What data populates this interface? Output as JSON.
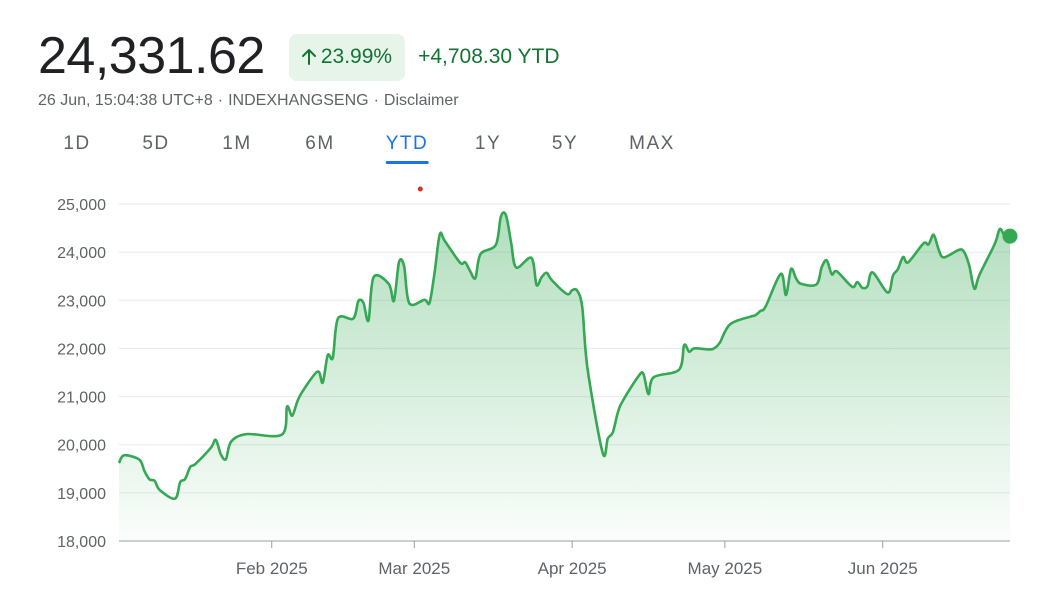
{
  "quote": {
    "price": "24,331.62",
    "change_percent": "23.99%",
    "change_abs": "+4,708.30 YTD",
    "date_time": "26 Jun, 15:04:38 UTC+8",
    "index": "INDEXHANGSENG",
    "disclaimer": "Disclaimer",
    "separator": "·"
  },
  "tabs": [
    {
      "label": "1D",
      "active": false
    },
    {
      "label": "5D",
      "active": false
    },
    {
      "label": "1M",
      "active": false
    },
    {
      "label": "6M",
      "active": false
    },
    {
      "label": "YTD",
      "active": true
    },
    {
      "label": "1Y",
      "active": false
    },
    {
      "label": "5Y",
      "active": false
    },
    {
      "label": "MAX",
      "active": false
    }
  ],
  "colors": {
    "line": "#34a853",
    "positive_text": "#137333",
    "badge_bg": "#e6f4ea",
    "grid": "#e8eaed",
    "axis": "#5f6368",
    "tab_active": "#1a73e8",
    "marker": "#d93025"
  },
  "chart_data": {
    "type": "area",
    "xlabel": "",
    "ylabel": "",
    "ylim": [
      18000,
      25000
    ],
    "y_ticks": [
      18000,
      19000,
      20000,
      21000,
      22000,
      23000,
      24000,
      25000
    ],
    "y_tick_labels": [
      "18,000",
      "19,000",
      "20,000",
      "21,000",
      "22,000",
      "23,000",
      "24,000",
      "25,000"
    ],
    "x_range": [
      "2025-01-02",
      "2025-06-26"
    ],
    "x_ticks": [
      {
        "date": "2025-02-01",
        "label": "Feb 2025"
      },
      {
        "date": "2025-03-01",
        "label": "Mar 2025"
      },
      {
        "date": "2025-04-01",
        "label": "Apr 2025"
      },
      {
        "date": "2025-05-01",
        "label": "May 2025"
      },
      {
        "date": "2025-06-01",
        "label": "Jun 2025"
      }
    ],
    "grid": true,
    "event_marker_date": "2025-03-01",
    "last_point": {
      "date": "2025-06-26",
      "value": 24331.62
    },
    "series": [
      {
        "x": [
          "2025-01-02",
          "2025-01-03",
          "2025-01-06",
          "2025-01-07",
          "2025-01-08",
          "2025-01-09",
          "2025-01-10",
          "2025-01-13",
          "2025-01-14",
          "2025-01-15",
          "2025-01-16",
          "2025-01-17",
          "2025-01-20",
          "2025-01-21",
          "2025-01-22",
          "2025-01-23",
          "2025-01-24",
          "2025-01-27",
          "2025-02-03",
          "2025-02-04",
          "2025-02-05",
          "2025-02-06",
          "2025-02-07",
          "2025-02-10",
          "2025-02-11",
          "2025-02-12",
          "2025-02-13",
          "2025-02-14",
          "2025-02-17",
          "2025-02-18",
          "2025-02-19",
          "2025-02-20",
          "2025-02-21",
          "2025-02-24",
          "2025-02-25",
          "2025-02-26",
          "2025-02-27",
          "2025-02-28",
          "2025-03-03",
          "2025-03-04",
          "2025-03-05",
          "2025-03-06",
          "2025-03-07",
          "2025-03-10",
          "2025-03-11",
          "2025-03-12",
          "2025-03-13",
          "2025-03-14",
          "2025-03-17",
          "2025-03-18",
          "2025-03-19",
          "2025-03-20",
          "2025-03-21",
          "2025-03-24",
          "2025-03-25",
          "2025-03-26",
          "2025-03-27",
          "2025-03-28",
          "2025-03-31",
          "2025-04-01",
          "2025-04-02",
          "2025-04-03",
          "2025-04-04",
          "2025-04-07",
          "2025-04-08",
          "2025-04-09",
          "2025-04-10",
          "2025-04-11",
          "2025-04-14",
          "2025-04-15",
          "2025-04-16",
          "2025-04-17",
          "2025-04-22",
          "2025-04-23",
          "2025-04-24",
          "2025-04-25",
          "2025-04-28",
          "2025-04-29",
          "2025-04-30",
          "2025-05-02",
          "2025-05-06",
          "2025-05-07",
          "2025-05-08",
          "2025-05-09",
          "2025-05-12",
          "2025-05-13",
          "2025-05-14",
          "2025-05-15",
          "2025-05-16",
          "2025-05-19",
          "2025-05-20",
          "2025-05-21",
          "2025-05-22",
          "2025-05-23",
          "2025-05-26",
          "2025-05-27",
          "2025-05-28",
          "2025-05-29",
          "2025-05-30",
          "2025-06-02",
          "2025-06-03",
          "2025-06-04",
          "2025-06-05",
          "2025-06-06",
          "2025-06-09",
          "2025-06-10",
          "2025-06-11",
          "2025-06-12",
          "2025-06-13",
          "2025-06-16",
          "2025-06-17",
          "2025-06-18",
          "2025-06-19",
          "2025-06-20",
          "2025-06-23",
          "2025-06-24",
          "2025-06-25",
          "2025-06-26"
        ],
        "values": [
          19620,
          19780,
          19690,
          19450,
          19280,
          19250,
          19060,
          18880,
          19220,
          19290,
          19540,
          19600,
          19930,
          20100,
          19800,
          19700,
          20060,
          20220,
          20210,
          20790,
          20600,
          20890,
          21100,
          21520,
          21290,
          21860,
          21810,
          22620,
          22620,
          22980,
          22950,
          22580,
          23480,
          23340,
          22990,
          23790,
          23710,
          22940,
          23010,
          22950,
          23590,
          24370,
          24230,
          23780,
          23790,
          23600,
          23460,
          23960,
          24150,
          24740,
          24770,
          24210,
          23680,
          23880,
          23320,
          23480,
          23570,
          23420,
          23130,
          23210,
          23200,
          22850,
          21600,
          19830,
          20130,
          20260,
          20680,
          20920,
          21420,
          21470,
          21050,
          21400,
          21560,
          22070,
          21930,
          22000,
          21980,
          22010,
          22120,
          22500,
          22660,
          22690,
          22780,
          22870,
          23550,
          23110,
          23650,
          23450,
          23340,
          23330,
          23680,
          23830,
          23540,
          23600,
          23280,
          23380,
          23260,
          23290,
          23580,
          23160,
          23510,
          23650,
          23900,
          23790,
          24180,
          24160,
          24360,
          24050,
          23890,
          24050,
          24000,
          23720,
          23240,
          23530,
          24170,
          24480,
          24330,
          24331.62
        ]
      }
    ]
  }
}
